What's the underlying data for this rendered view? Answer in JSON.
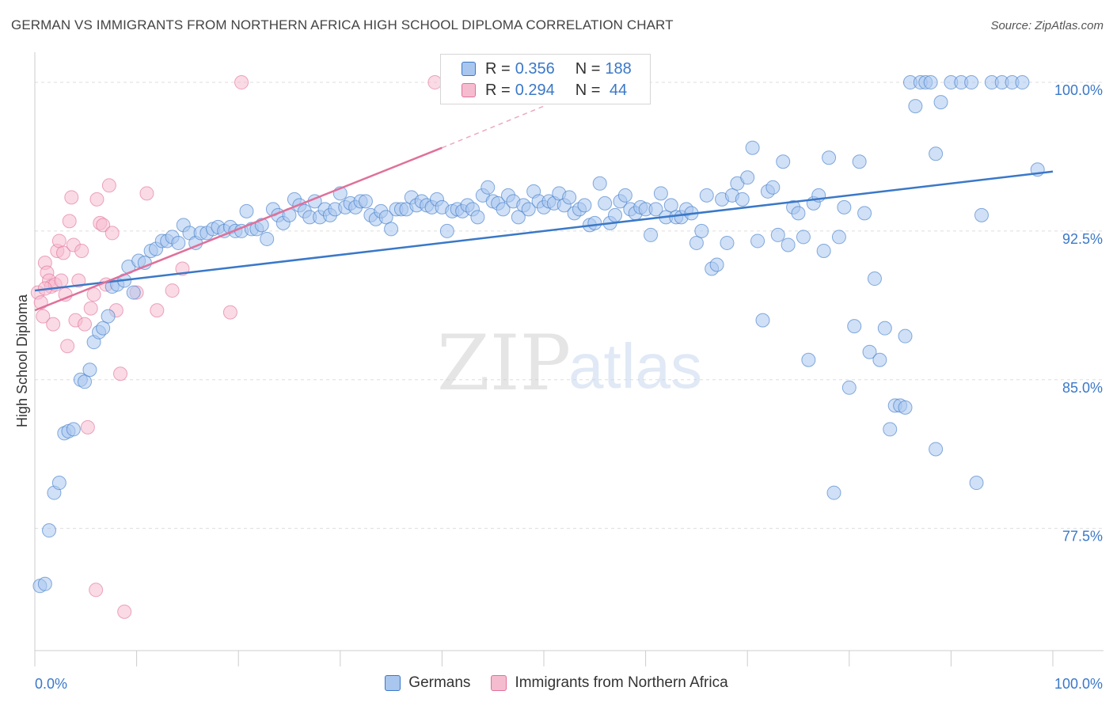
{
  "title": "GERMAN VS IMMIGRANTS FROM NORTHERN AFRICA HIGH SCHOOL DIPLOMA CORRELATION CHART",
  "source": "Source: ZipAtlas.com",
  "colors": {
    "blue": "#3a78c8",
    "blue_fill": "#a9c6ee",
    "pink": "#e0709a",
    "pink_fill": "#f5bcd0",
    "grid": "#dddddd",
    "axis_label": "#3a78c8"
  },
  "legend": {
    "row1": {
      "r_label": "R = ",
      "r_value": "0.356",
      "n_label": "N = ",
      "n_value": "188"
    },
    "row2": {
      "r_label": "R = ",
      "r_value": "0.294",
      "n_label": "N = ",
      "n_value": " 44"
    }
  },
  "watermark": {
    "zip": "ZIP",
    "atlas": "atlas"
  },
  "chart_data": {
    "type": "scatter",
    "title": "GERMAN VS IMMIGRANTS FROM NORTHERN AFRICA HIGH SCHOOL DIPLOMA CORRELATION CHART",
    "xlabel": "",
    "ylabel": "High School Diploma",
    "xlim": [
      0,
      100
    ],
    "ylim": [
      70.5,
      101.0
    ],
    "x_tick_labels": [
      "0.0%",
      "100.0%"
    ],
    "y_ticks": [
      77.5,
      85.0,
      92.5,
      100.0
    ],
    "y_tick_labels": [
      "77.5%",
      "85.0%",
      "92.5%",
      "100.0%"
    ],
    "grid": true,
    "legend_position": "bottom",
    "series": [
      {
        "name": "Germans",
        "r": 0.356,
        "n": 188,
        "trend": {
          "x": [
            0,
            100
          ],
          "y": [
            89.5,
            95.5
          ]
        },
        "points": [
          [
            0.5,
            74.6
          ],
          [
            1.0,
            74.7
          ],
          [
            1.4,
            77.4
          ],
          [
            1.9,
            79.3
          ],
          [
            2.4,
            79.8
          ],
          [
            2.9,
            82.3
          ],
          [
            3.3,
            82.4
          ],
          [
            3.8,
            82.5
          ],
          [
            4.5,
            85.0
          ],
          [
            4.9,
            84.9
          ],
          [
            5.4,
            85.5
          ],
          [
            5.8,
            86.9
          ],
          [
            6.3,
            87.4
          ],
          [
            6.7,
            87.6
          ],
          [
            7.2,
            88.2
          ],
          [
            7.6,
            89.7
          ],
          [
            8.1,
            89.8
          ],
          [
            8.8,
            90.0
          ],
          [
            9.2,
            90.7
          ],
          [
            9.7,
            89.4
          ],
          [
            10.2,
            91.0
          ],
          [
            10.8,
            90.9
          ],
          [
            11.4,
            91.5
          ],
          [
            11.9,
            91.6
          ],
          [
            12.5,
            92.0
          ],
          [
            13.0,
            92.0
          ],
          [
            13.5,
            92.2
          ],
          [
            14.1,
            91.9
          ],
          [
            14.6,
            92.8
          ],
          [
            15.2,
            92.4
          ],
          [
            15.8,
            91.9
          ],
          [
            16.3,
            92.4
          ],
          [
            16.9,
            92.4
          ],
          [
            17.5,
            92.6
          ],
          [
            18.0,
            92.7
          ],
          [
            18.6,
            92.5
          ],
          [
            19.2,
            92.7
          ],
          [
            19.7,
            92.5
          ],
          [
            20.3,
            92.5
          ],
          [
            20.8,
            93.5
          ],
          [
            21.3,
            92.6
          ],
          [
            21.8,
            92.6
          ],
          [
            22.3,
            92.8
          ],
          [
            22.8,
            92.1
          ],
          [
            23.4,
            93.6
          ],
          [
            23.9,
            93.3
          ],
          [
            24.4,
            92.9
          ],
          [
            25.0,
            93.3
          ],
          [
            25.5,
            94.1
          ],
          [
            26.0,
            93.8
          ],
          [
            26.5,
            93.5
          ],
          [
            27.0,
            93.2
          ],
          [
            27.5,
            94.0
          ],
          [
            28.0,
            93.2
          ],
          [
            28.5,
            93.6
          ],
          [
            29.0,
            93.3
          ],
          [
            29.5,
            93.6
          ],
          [
            30.0,
            94.4
          ],
          [
            30.5,
            93.7
          ],
          [
            31.0,
            93.9
          ],
          [
            31.5,
            93.7
          ],
          [
            32.0,
            94.0
          ],
          [
            32.5,
            94.0
          ],
          [
            33.0,
            93.3
          ],
          [
            33.5,
            93.1
          ],
          [
            34.0,
            93.5
          ],
          [
            34.5,
            93.2
          ],
          [
            35.0,
            92.6
          ],
          [
            35.5,
            93.6
          ],
          [
            36.0,
            93.6
          ],
          [
            36.5,
            93.6
          ],
          [
            37.0,
            94.2
          ],
          [
            37.5,
            93.8
          ],
          [
            38.0,
            94.0
          ],
          [
            38.5,
            93.8
          ],
          [
            39.0,
            93.7
          ],
          [
            39.5,
            94.1
          ],
          [
            40.0,
            93.7
          ],
          [
            40.5,
            92.5
          ],
          [
            41.0,
            93.5
          ],
          [
            41.5,
            93.6
          ],
          [
            42.0,
            93.5
          ],
          [
            42.5,
            93.8
          ],
          [
            43.0,
            93.6
          ],
          [
            43.5,
            93.2
          ],
          [
            44.0,
            94.3
          ],
          [
            44.5,
            94.7
          ],
          [
            45.0,
            94.0
          ],
          [
            45.5,
            93.9
          ],
          [
            46.0,
            93.6
          ],
          [
            46.5,
            94.3
          ],
          [
            47.0,
            94.0
          ],
          [
            47.5,
            93.2
          ],
          [
            48.0,
            93.8
          ],
          [
            48.5,
            93.6
          ],
          [
            49.0,
            94.5
          ],
          [
            49.5,
            94.0
          ],
          [
            50.0,
            93.7
          ],
          [
            50.5,
            94.0
          ],
          [
            51.0,
            93.9
          ],
          [
            51.5,
            94.4
          ],
          [
            52.0,
            93.8
          ],
          [
            52.5,
            94.2
          ],
          [
            53.0,
            93.4
          ],
          [
            53.5,
            93.6
          ],
          [
            54.0,
            93.8
          ],
          [
            54.5,
            92.8
          ],
          [
            55.0,
            92.9
          ],
          [
            55.5,
            94.9
          ],
          [
            56.0,
            93.9
          ],
          [
            56.5,
            92.9
          ],
          [
            57.0,
            93.3
          ],
          [
            57.5,
            94.0
          ],
          [
            58.0,
            94.3
          ],
          [
            58.5,
            93.6
          ],
          [
            59.0,
            93.4
          ],
          [
            59.5,
            93.7
          ],
          [
            60.0,
            93.6
          ],
          [
            60.5,
            92.3
          ],
          [
            61.0,
            93.6
          ],
          [
            61.5,
            94.4
          ],
          [
            62.0,
            93.2
          ],
          [
            62.5,
            93.8
          ],
          [
            63.0,
            93.2
          ],
          [
            63.5,
            93.2
          ],
          [
            64.0,
            93.6
          ],
          [
            64.5,
            93.4
          ],
          [
            65.0,
            91.9
          ],
          [
            65.5,
            92.5
          ],
          [
            66.0,
            94.3
          ],
          [
            66.5,
            90.6
          ],
          [
            67.0,
            90.8
          ],
          [
            67.5,
            94.1
          ],
          [
            68.0,
            91.9
          ],
          [
            68.5,
            94.3
          ],
          [
            69.0,
            94.9
          ],
          [
            69.5,
            94.1
          ],
          [
            70.0,
            95.2
          ],
          [
            70.5,
            96.7
          ],
          [
            71.0,
            92.0
          ],
          [
            71.5,
            88.0
          ],
          [
            72.0,
            94.5
          ],
          [
            72.5,
            94.7
          ],
          [
            73.0,
            92.3
          ],
          [
            73.5,
            96.0
          ],
          [
            74.0,
            91.8
          ],
          [
            74.5,
            93.7
          ],
          [
            75.0,
            93.4
          ],
          [
            75.5,
            92.2
          ],
          [
            76.0,
            86.0
          ],
          [
            76.5,
            93.9
          ],
          [
            77.0,
            94.3
          ],
          [
            77.5,
            91.5
          ],
          [
            78.0,
            96.2
          ],
          [
            78.5,
            79.3
          ],
          [
            79.0,
            92.2
          ],
          [
            79.5,
            93.7
          ],
          [
            80.0,
            84.6
          ],
          [
            80.5,
            87.7
          ],
          [
            81.0,
            96.0
          ],
          [
            81.5,
            93.4
          ],
          [
            82.0,
            86.4
          ],
          [
            82.5,
            90.1
          ],
          [
            83.0,
            86.0
          ],
          [
            83.5,
            87.6
          ],
          [
            84.0,
            82.5
          ],
          [
            84.5,
            83.7
          ],
          [
            85.0,
            83.7
          ],
          [
            85.5,
            87.2
          ],
          [
            86.0,
            100.0
          ],
          [
            86.5,
            98.8
          ],
          [
            87.0,
            100.0
          ],
          [
            87.5,
            100.0
          ],
          [
            88.0,
            100.0
          ],
          [
            88.5,
            96.4
          ],
          [
            89.0,
            99.0
          ],
          [
            90.0,
            100.0
          ],
          [
            91.0,
            100.0
          ],
          [
            92.0,
            100.0
          ],
          [
            93.0,
            93.3
          ],
          [
            94.0,
            100.0
          ],
          [
            95.0,
            100.0
          ],
          [
            96.0,
            100.0
          ],
          [
            97.0,
            100.0
          ],
          [
            98.5,
            95.6
          ],
          [
            92.5,
            79.8
          ],
          [
            88.5,
            81.5
          ],
          [
            85.5,
            83.6
          ]
        ]
      },
      {
        "name": "Immigrants from Northern Africa",
        "r": 0.294,
        "n": 44,
        "trend": {
          "x": [
            0,
            40
          ],
          "y": [
            88.5,
            96.7
          ]
        },
        "trend_dashed": {
          "x": [
            40,
            50
          ],
          "y": [
            96.7,
            98.8
          ]
        },
        "points": [
          [
            0.3,
            89.4
          ],
          [
            0.6,
            88.9
          ],
          [
            0.8,
            88.2
          ],
          [
            1.0,
            90.9
          ],
          [
            1.2,
            90.4
          ],
          [
            1.4,
            90.0
          ],
          [
            1.6,
            89.7
          ],
          [
            1.8,
            87.8
          ],
          [
            2.0,
            89.8
          ],
          [
            2.2,
            91.5
          ],
          [
            2.4,
            92.0
          ],
          [
            2.6,
            90.0
          ],
          [
            2.8,
            91.4
          ],
          [
            3.0,
            89.3
          ],
          [
            3.2,
            86.7
          ],
          [
            3.4,
            93.0
          ],
          [
            3.6,
            94.2
          ],
          [
            3.8,
            91.8
          ],
          [
            4.0,
            88.0
          ],
          [
            4.3,
            90.0
          ],
          [
            4.6,
            91.5
          ],
          [
            4.9,
            87.8
          ],
          [
            5.2,
            82.6
          ],
          [
            5.5,
            88.6
          ],
          [
            5.8,
            89.3
          ],
          [
            6.1,
            94.1
          ],
          [
            6.4,
            92.9
          ],
          [
            6.7,
            92.8
          ],
          [
            7.0,
            89.8
          ],
          [
            7.3,
            94.8
          ],
          [
            7.6,
            92.4
          ],
          [
            8.0,
            88.5
          ],
          [
            8.4,
            85.3
          ],
          [
            8.8,
            73.3
          ],
          [
            10.0,
            89.4
          ],
          [
            11.0,
            94.4
          ],
          [
            12.0,
            88.5
          ],
          [
            13.5,
            89.5
          ],
          [
            14.5,
            90.6
          ],
          [
            19.2,
            88.4
          ],
          [
            20.3,
            100.0
          ],
          [
            39.3,
            100.0
          ],
          [
            6.0,
            74.4
          ],
          [
            1.0,
            89.6
          ]
        ]
      }
    ]
  },
  "bottom_legend": {
    "germans": "Germans",
    "immigrants": "Immigrants from Northern Africa"
  }
}
